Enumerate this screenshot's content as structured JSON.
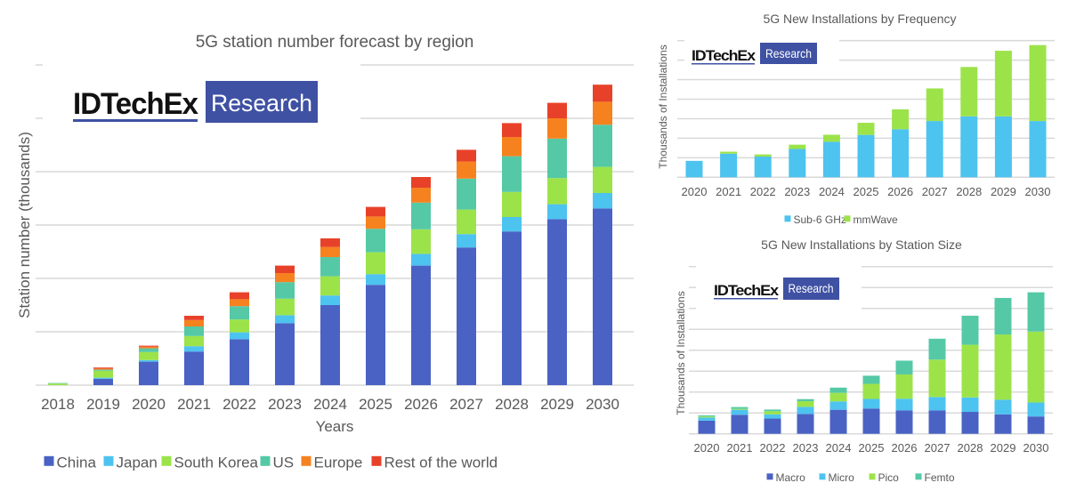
{
  "logo": {
    "brand": "IDTechEx",
    "tag": "Research",
    "brand_color": "#3f51a3"
  },
  "chart_data": [
    {
      "id": "region",
      "type": "bar",
      "stacked": true,
      "title": "5G station number forecast by region",
      "xlabel": "Years",
      "ylabel": "Station number (thousands)",
      "y_unit_note": "no y tick labels shown; values in gridline units",
      "ylim": [
        0,
        6
      ],
      "grid": true,
      "legend_position": "bottom",
      "categories": [
        "2018",
        "2019",
        "2020",
        "2021",
        "2022",
        "2023",
        "2024",
        "2025",
        "2026",
        "2027",
        "2028",
        "2029",
        "2030"
      ],
      "series": [
        {
          "name": "China",
          "color": "#4a62c4",
          "values": [
            0.0,
            0.12,
            0.44,
            0.63,
            0.86,
            1.16,
            1.5,
            1.88,
            2.24,
            2.58,
            2.88,
            3.11,
            3.31
          ]
        },
        {
          "name": "Japan",
          "color": "#4dc3ef",
          "values": [
            0.0,
            0.02,
            0.03,
            0.1,
            0.13,
            0.15,
            0.18,
            0.2,
            0.22,
            0.25,
            0.27,
            0.28,
            0.29
          ]
        },
        {
          "name": "South Korea",
          "color": "#9ce34a",
          "values": [
            0.03,
            0.13,
            0.15,
            0.19,
            0.24,
            0.31,
            0.36,
            0.41,
            0.46,
            0.46,
            0.47,
            0.49,
            0.49
          ]
        },
        {
          "name": "US",
          "color": "#55c9a6",
          "values": [
            0.01,
            0.02,
            0.07,
            0.18,
            0.25,
            0.31,
            0.36,
            0.44,
            0.5,
            0.58,
            0.67,
            0.74,
            0.79
          ]
        },
        {
          "name": "Europe",
          "color": "#f6821f",
          "values": [
            0.0,
            0.02,
            0.03,
            0.12,
            0.13,
            0.17,
            0.19,
            0.23,
            0.28,
            0.32,
            0.36,
            0.38,
            0.43
          ]
        },
        {
          "name": "Rest of the world",
          "color": "#e8412a",
          "values": [
            0.0,
            0.02,
            0.02,
            0.08,
            0.13,
            0.14,
            0.16,
            0.18,
            0.2,
            0.22,
            0.26,
            0.29,
            0.32
          ]
        }
      ]
    },
    {
      "id": "frequency",
      "type": "bar",
      "stacked": true,
      "title": "5G New Installations by Frequency",
      "xlabel": "",
      "ylabel": "Thousands of Installations",
      "y_unit_note": "no y tick labels shown; values in gridline units",
      "ylim": [
        0,
        7
      ],
      "grid": true,
      "legend_position": "bottom",
      "categories": [
        "2020",
        "2021",
        "2022",
        "2023",
        "2024",
        "2025",
        "2026",
        "2027",
        "2028",
        "2029",
        "2030"
      ],
      "series": [
        {
          "name": "Sub-6 GHz",
          "color": "#4dc3ef",
          "values": [
            0.84,
            1.21,
            1.06,
            1.45,
            1.82,
            2.17,
            2.46,
            2.88,
            3.12,
            3.12,
            2.88
          ]
        },
        {
          "name": "mmWave",
          "color": "#9ce34a",
          "values": [
            0.0,
            0.1,
            0.11,
            0.22,
            0.36,
            0.62,
            1.02,
            1.67,
            2.53,
            3.36,
            3.89
          ]
        }
      ]
    },
    {
      "id": "station-size",
      "type": "bar",
      "stacked": true,
      "title": "5G New Installations by Station Size",
      "xlabel": "",
      "ylabel": "Thousands of Installations",
      "y_unit_note": "no y tick labels shown; values in gridline units",
      "ylim": [
        0,
        8
      ],
      "grid": true,
      "legend_position": "bottom",
      "categories": [
        "2020",
        "2021",
        "2022",
        "2023",
        "2024",
        "2025",
        "2026",
        "2027",
        "2028",
        "2029",
        "2030"
      ],
      "series": [
        {
          "name": "Macro",
          "color": "#4a62c4",
          "values": [
            0.63,
            0.91,
            0.73,
            0.95,
            1.15,
            1.21,
            1.12,
            1.12,
            1.05,
            0.93,
            0.83
          ]
        },
        {
          "name": "Micro",
          "color": "#4dc3ef",
          "values": [
            0.15,
            0.24,
            0.2,
            0.34,
            0.4,
            0.46,
            0.56,
            0.64,
            0.69,
            0.7,
            0.67
          ]
        },
        {
          "name": "Pico",
          "color": "#9ce34a",
          "values": [
            0.05,
            0.04,
            0.15,
            0.27,
            0.41,
            0.72,
            1.16,
            1.79,
            2.52,
            3.12,
            3.39
          ]
        },
        {
          "name": "Femto",
          "color": "#55c9a6",
          "values": [
            0.05,
            0.09,
            0.08,
            0.1,
            0.25,
            0.39,
            0.66,
            1.0,
            1.39,
            1.75,
            1.88
          ]
        }
      ]
    }
  ]
}
